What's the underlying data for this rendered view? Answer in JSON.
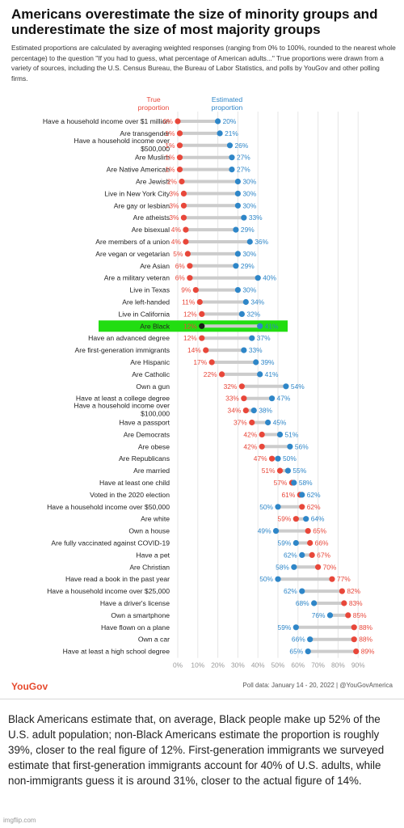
{
  "title": "Americans overestimate the size of minority groups and underestimate the size of most majority groups",
  "subtitle": "Estimated proportions are calculated by averaging weighted responses (ranging from 0% to 100%, rounded to the nearest whole percentage) to the question \"If you had to guess, what percentage of American adults...\" True proportions were drawn from a variety of sources, including the U.S. Census Bureau, the Bureau of Labor Statistics, and polls by YouGov and other polling firms.",
  "legend": {
    "true_label": "True proportion",
    "estimated_label": "Estimated proportion"
  },
  "colors": {
    "true": "#e8473a",
    "estimated": "#2e86c8",
    "highlight": "#22dd11",
    "connector": "#cccccc"
  },
  "footer": {
    "logo": "YouGov",
    "source": "Poll data: January 14 - 20, 2022 | @YouGovAmerica"
  },
  "caption": "Black Americans estimate that, on average, Black people make up 52% of the U.S. adult population; non-Black Americans estimate the proportion is roughly 39%, closer to the real figure of 12%. First-generation immigrants we surveyed estimate that first-generation immigrants account for 40% of U.S. adults, while non-immigrants guess it is around 31%, closer to the actual figure of 14%.",
  "watermark": "imgflip.com",
  "chart_data": {
    "type": "dumbbell",
    "highlighted_category": "Are Black",
    "xlim": [
      0,
      90
    ],
    "x_ticks": [
      "0%",
      "10%",
      "20%",
      "30%",
      "40%",
      "50%",
      "60%",
      "70%",
      "80%",
      "90%"
    ],
    "categories": [
      "Have a household income over $1 million",
      "Are transgender",
      "Have a household income over $500,000",
      "Are Muslim",
      "Are Native American",
      "Are Jewish",
      "Live in New York City",
      "Are gay or lesbian",
      "Are atheists",
      "Are bisexual",
      "Are members of a union",
      "Are vegan or vegetarian",
      "Are Asian",
      "Are a military veteran",
      "Live in Texas",
      "Are left-handed",
      "Live in California",
      "Are Black",
      "Have an advanced degree",
      "Are first-generation immigrants",
      "Are Hispanic",
      "Are Catholic",
      "Own a gun",
      "Have at least a college degree",
      "Have a household income over $100,000",
      "Have a passport",
      "Are Democrats",
      "Are obese",
      "Are Republicans",
      "Are married",
      "Have at least one child",
      "Voted in the 2020 election",
      "Have a household income over $50,000",
      "Are white",
      "Own a house",
      "Are fully vaccinated against COVID-19",
      "Have a pet",
      "Are Christian",
      "Have read a book in the past year",
      "Have a household income over $25,000",
      "Have a driver's license",
      "Own a smartphone",
      "Have flown on a plane",
      "Own a car",
      "Have at least a high school degree"
    ],
    "series": [
      {
        "name": "True proportion",
        "values": [
          0,
          1,
          1,
          1,
          1,
          2,
          3,
          3,
          3,
          4,
          4,
          5,
          6,
          6,
          9,
          11,
          12,
          12,
          12,
          14,
          17,
          22,
          32,
          33,
          34,
          37,
          42,
          42,
          47,
          51,
          57,
          61,
          62,
          59,
          65,
          66,
          67,
          70,
          77,
          82,
          83,
          85,
          88,
          88,
          89
        ]
      },
      {
        "name": "Estimated proportion",
        "values": [
          20,
          21,
          26,
          27,
          27,
          30,
          30,
          30,
          33,
          29,
          36,
          30,
          29,
          40,
          30,
          34,
          32,
          41,
          37,
          33,
          39,
          41,
          54,
          47,
          38,
          45,
          51,
          56,
          50,
          55,
          58,
          62,
          50,
          64,
          49,
          59,
          62,
          58,
          50,
          62,
          68,
          76,
          59,
          66,
          65
        ]
      }
    ]
  }
}
